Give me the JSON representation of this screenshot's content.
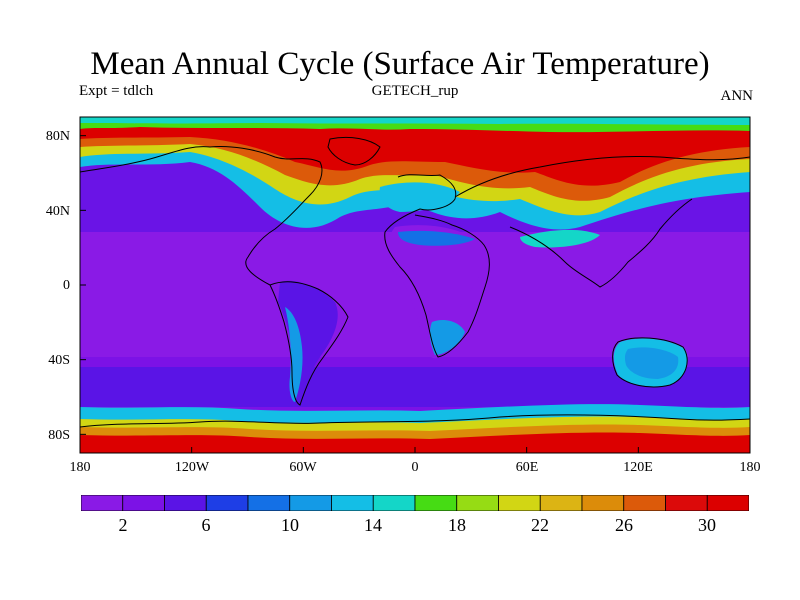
{
  "title": "Mean Annual Cycle (Surface Air Temperature)",
  "subtitle_left": "Expt = tdlch",
  "subtitle_center": "GETECH_rup",
  "subtitle_right": "ANN",
  "map": {
    "projection": "equirectangular",
    "lat_range": [
      -90,
      90
    ],
    "lon_range": [
      -180,
      180
    ],
    "y_ticks": [
      "80N",
      "40N",
      "0",
      "40S",
      "80S"
    ],
    "x_ticks": [
      "180",
      "120W",
      "60W",
      "0",
      "60E",
      "120E",
      "180"
    ]
  },
  "colorbar": {
    "colors": [
      "#8a1ae6",
      "#7c12e6",
      "#5a14e6",
      "#1e3ee6",
      "#1470e6",
      "#149ae6",
      "#14bee6",
      "#14d6c8",
      "#46dc14",
      "#96dc14",
      "#d2d614",
      "#dcb414",
      "#dc8c0a",
      "#dc5a0a",
      "#dc0a0a",
      "#dc0000"
    ],
    "labels": [
      "2",
      "6",
      "10",
      "14",
      "18",
      "22",
      "26",
      "30"
    ]
  }
}
